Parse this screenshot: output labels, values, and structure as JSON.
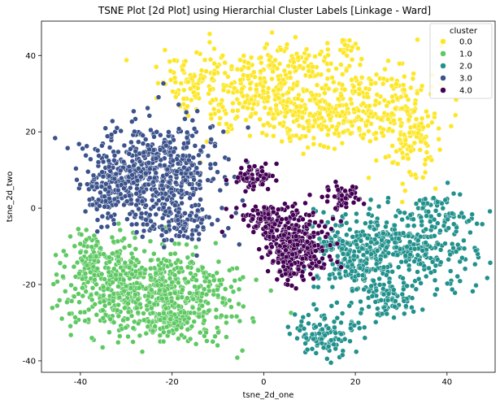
{
  "chart_data": {
    "type": "scatter",
    "title": "TSNE Plot [2d Plot] using Hierarchial Cluster Labels [Linkage - Ward]",
    "xlabel": "tsne_2d_one",
    "ylabel": "tsne_2d_two",
    "xlim": [
      -48.5,
      50.5
    ],
    "ylim": [
      -43,
      49
    ],
    "xticks": [
      -40,
      -20,
      0,
      20,
      40
    ],
    "yticks": [
      -40,
      -20,
      0,
      20,
      40
    ],
    "grid": false,
    "legend": {
      "title": "cluster",
      "placement": "top-right",
      "entries": [
        "0.0",
        "1.0",
        "2.0",
        "3.0",
        "4.0"
      ]
    },
    "series": [
      {
        "name": "0.0",
        "color": "#fde725",
        "count": 860,
        "blobs": [
          {
            "cx": 2,
            "cy": 30,
            "sx": 8,
            "sy": 6,
            "w": 0.38
          },
          {
            "cx": 12,
            "cy": 23,
            "sx": 5,
            "sy": 3.5,
            "w": 0.14
          },
          {
            "cx": 22,
            "cy": 28,
            "sx": 5,
            "sy": 5,
            "w": 0.12
          },
          {
            "cx": 31,
            "cy": 22,
            "sx": 3.5,
            "sy": 7,
            "w": 0.2
          },
          {
            "cx": -15,
            "cy": 32,
            "sx": 4,
            "sy": 4,
            "w": 0.1
          },
          {
            "cx": 17,
            "cy": 42,
            "sx": 1.8,
            "sy": 1.8,
            "w": 0.03
          },
          {
            "cx": 8,
            "cy": 38,
            "sx": 3,
            "sy": 2,
            "w": 0.03
          }
        ]
      },
      {
        "name": "1.0",
        "color": "#5ec962",
        "count": 860,
        "blobs": [
          {
            "cx": -24,
            "cy": -22,
            "sx": 9,
            "sy": 6,
            "w": 0.75
          },
          {
            "cx": -36,
            "cy": -14,
            "sx": 4,
            "sy": 5,
            "w": 0.17
          },
          {
            "cx": -20,
            "cy": -30,
            "sx": 5,
            "sy": 2.5,
            "w": 0.08
          }
        ]
      },
      {
        "name": "2.0",
        "color": "#21918c",
        "count": 760,
        "blobs": [
          {
            "cx": 32,
            "cy": -10,
            "sx": 7,
            "sy": 5,
            "w": 0.4
          },
          {
            "cx": 20,
            "cy": -12,
            "sx": 5,
            "sy": 5,
            "w": 0.28
          },
          {
            "cx": 27,
            "cy": -24,
            "sx": 3.5,
            "sy": 2.5,
            "w": 0.1
          },
          {
            "cx": 14,
            "cy": -33,
            "sx": 4,
            "sy": 3,
            "w": 0.15
          },
          {
            "cx": 38,
            "cy": 0,
            "sx": 3,
            "sy": 2.5,
            "w": 0.07
          }
        ]
      },
      {
        "name": "3.0",
        "color": "#3b528b",
        "count": 750,
        "blobs": [
          {
            "cx": -24,
            "cy": 10,
            "sx": 7,
            "sy": 6,
            "w": 0.7
          },
          {
            "cx": -33,
            "cy": 4,
            "sx": 3.5,
            "sy": 4,
            "w": 0.15
          },
          {
            "cx": -19,
            "cy": -4,
            "sx": 4,
            "sy": 3,
            "w": 0.15
          }
        ]
      },
      {
        "name": "4.0",
        "color": "#440154",
        "count": 520,
        "blobs": [
          {
            "cx": 7,
            "cy": -10,
            "sx": 3.5,
            "sy": 4.5,
            "w": 0.6
          },
          {
            "cx": -2,
            "cy": 8,
            "sx": 2,
            "sy": 1.5,
            "w": 0.13
          },
          {
            "cx": 17,
            "cy": 3,
            "sx": 2,
            "sy": 1.8,
            "w": 0.1
          },
          {
            "cx": 2,
            "cy": -3,
            "sx": 4,
            "sy": 2,
            "w": 0.17
          }
        ]
      }
    ]
  }
}
